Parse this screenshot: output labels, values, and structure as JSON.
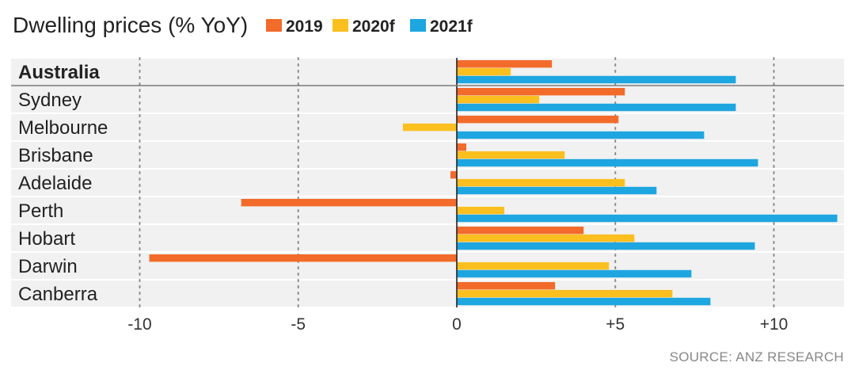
{
  "chart_data": {
    "type": "bar",
    "orientation": "horizontal",
    "title": "Dwelling prices (% YoY)",
    "categories": [
      "Australia",
      "Sydney",
      "Melbourne",
      "Brisbane",
      "Adelaide",
      "Perth",
      "Hobart",
      "Darwin",
      "Canberra"
    ],
    "series": [
      {
        "name": "2019",
        "color": "#f26b2a",
        "values": [
          3.0,
          5.3,
          5.1,
          0.3,
          -0.2,
          -6.8,
          4.0,
          -9.7,
          3.1
        ]
      },
      {
        "name": "2020f",
        "color": "#fbbf1f",
        "values": [
          1.7,
          2.6,
          -1.7,
          3.4,
          5.3,
          1.5,
          5.6,
          4.8,
          6.8
        ]
      },
      {
        "name": "2021f",
        "color": "#1ea6e0",
        "values": [
          8.8,
          8.8,
          7.8,
          9.5,
          6.3,
          12.0,
          9.4,
          7.4,
          8.0
        ]
      }
    ],
    "xlim": [
      -10,
      12
    ],
    "xticks": [
      {
        "value": -10,
        "label": "-10"
      },
      {
        "value": -5,
        "label": "-5"
      },
      {
        "value": 0,
        "label": "0"
      },
      {
        "value": 5,
        "label": "+5"
      },
      {
        "value": 10,
        "label": "+10"
      }
    ],
    "grid": "vertical dotted",
    "legend_position": "top",
    "highlight_category": "Australia",
    "band_color": "#f1f1f1"
  },
  "source": "SOURCE: ANZ RESEARCH"
}
